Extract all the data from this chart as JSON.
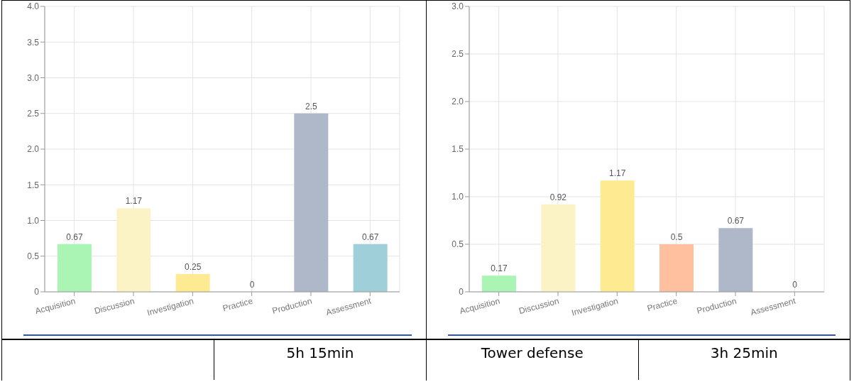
{
  "chart_data": [
    {
      "type": "bar",
      "categories": [
        "Acquisition",
        "Discussion",
        "Investigation",
        "Practice",
        "Production",
        "Assessment"
      ],
      "values": [
        0.67,
        1.17,
        0.25,
        0,
        2.5,
        0.67
      ],
      "colors": [
        "#abf5b4",
        "#fbf3c6",
        "#feeb91",
        "#fec09f",
        "#afb8c9",
        "#9fcfd8"
      ],
      "ylim": [
        0,
        4
      ],
      "yticks": [
        0,
        0.5,
        {
          "value": 1,
          "label": "1.0"
        },
        1.5,
        {
          "value": 2,
          "label": "2.0"
        },
        2.5,
        {
          "value": 3,
          "label": "3.0"
        },
        3.5,
        {
          "value": 4,
          "label": "4.0"
        }
      ],
      "grid": true,
      "data_labels": true,
      "annotations": [
        "5h 15min"
      ]
    },
    {
      "type": "bar",
      "categories": [
        "Acquisition",
        "Discussion",
        "Investigation",
        "Practice",
        "Production",
        "Assessment"
      ],
      "values": [
        0.17,
        0.92,
        1.17,
        0.5,
        0.67,
        0
      ],
      "colors": [
        "#abf5b4",
        "#fbf3c6",
        "#feeb91",
        "#fec09f",
        "#afb8c9",
        "#9fcfd8"
      ],
      "ylim": [
        0,
        3
      ],
      "yticks": [
        0,
        0.5,
        {
          "value": 1,
          "label": "1.0"
        },
        1.5,
        {
          "value": 2,
          "label": "2.0"
        },
        2.5,
        {
          "value": 3,
          "label": "3.0"
        }
      ],
      "grid": true,
      "data_labels": true,
      "annotations": [
        "Tower defense",
        "3h 25min"
      ]
    }
  ]
}
